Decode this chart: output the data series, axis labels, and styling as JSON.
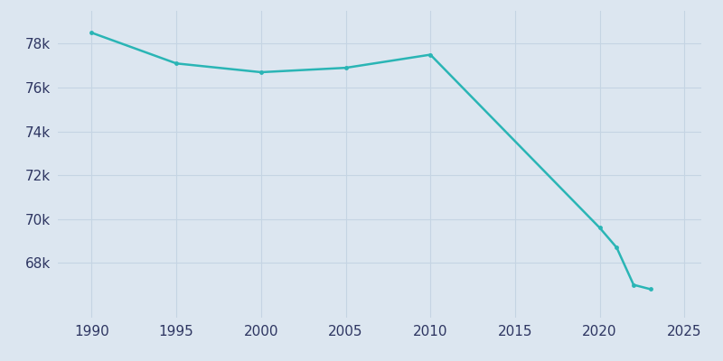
{
  "years": [
    1990,
    1995,
    2000,
    2005,
    2010,
    2020,
    2021,
    2022,
    2023
  ],
  "population": [
    78500,
    77100,
    76700,
    76900,
    77500,
    69600,
    68700,
    67000,
    66800
  ],
  "line_color": "#2ab5b5",
  "bg_color": "#dce6f0",
  "plot_bg_color": "#dce6f0",
  "grid_color": "#c5d4e3",
  "tick_color": "#2d3561",
  "ylim": [
    65500,
    79500
  ],
  "xlim": [
    1988,
    2026
  ],
  "yticks": [
    68000,
    70000,
    72000,
    74000,
    76000,
    78000
  ],
  "ytick_labels": [
    "68k",
    "70k",
    "72k",
    "74k",
    "76k",
    "78k"
  ],
  "xticks": [
    1990,
    1995,
    2000,
    2005,
    2010,
    2015,
    2020,
    2025
  ],
  "linewidth": 1.8,
  "markersize": 3.5,
  "tick_fontsize": 11
}
